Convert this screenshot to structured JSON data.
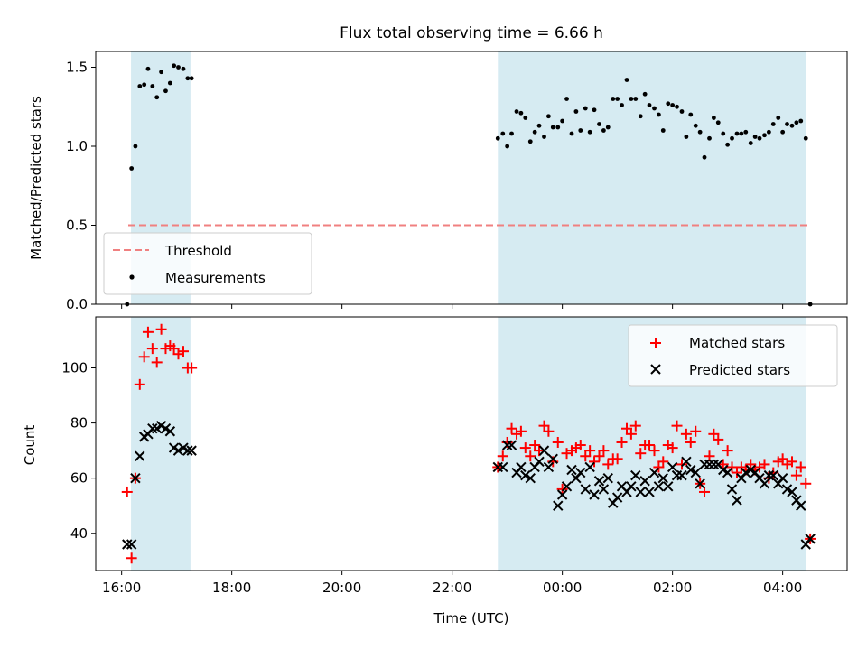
{
  "chart_data": [
    {
      "type": "scatter",
      "title": "Flux total observing time = 6.66 h",
      "ylabel": "Matched/Predicted stars",
      "xlabel": "",
      "ylim": [
        0,
        1.6
      ],
      "yticks": [
        0.0,
        0.5,
        1.0,
        1.5
      ],
      "ytick_labels": [
        "0.0",
        "0.5",
        "1.0",
        "1.5"
      ],
      "grid": false,
      "legend": "lower-left",
      "shaded_intervals": [
        [
          16.17,
          17.25
        ],
        [
          22.83,
          28.42
        ]
      ],
      "threshold": {
        "name": "Threshold",
        "value": 0.5,
        "x": [
          16.12,
          28.5
        ],
        "color": "#f08080"
      },
      "series": [
        {
          "name": "Measurements",
          "color": "#000000",
          "marker": "dot",
          "x": [
            16.1,
            16.18,
            16.25,
            16.33,
            16.41,
            16.48,
            16.56,
            16.64,
            16.72,
            16.8,
            16.88,
            16.95,
            17.03,
            17.12,
            17.2,
            17.27,
            22.83,
            22.92,
            23.0,
            23.08,
            23.17,
            23.25,
            23.33,
            23.42,
            23.5,
            23.58,
            23.67,
            23.75,
            23.83,
            23.92,
            24.0,
            24.08,
            24.17,
            24.25,
            24.33,
            24.42,
            24.5,
            24.58,
            24.67,
            24.75,
            24.83,
            24.92,
            25.0,
            25.08,
            25.17,
            25.25,
            25.33,
            25.42,
            25.5,
            25.58,
            25.67,
            25.75,
            25.83,
            25.92,
            26.0,
            26.08,
            26.17,
            26.25,
            26.33,
            26.42,
            26.5,
            26.58,
            26.67,
            26.75,
            26.83,
            26.92,
            27.0,
            27.08,
            27.17,
            27.25,
            27.33,
            27.42,
            27.5,
            27.58,
            27.67,
            27.75,
            27.83,
            27.92,
            28.0,
            28.08,
            28.17,
            28.25,
            28.33,
            28.42,
            28.5
          ],
          "y": [
            0.0,
            0.86,
            1.0,
            1.38,
            1.39,
            1.49,
            1.38,
            1.31,
            1.47,
            1.35,
            1.4,
            1.51,
            1.5,
            1.49,
            1.43,
            1.43,
            1.05,
            1.08,
            1.0,
            1.08,
            1.22,
            1.21,
            1.18,
            1.03,
            1.09,
            1.13,
            1.06,
            1.19,
            1.12,
            1.12,
            1.16,
            1.3,
            1.08,
            1.22,
            1.1,
            1.24,
            1.09,
            1.23,
            1.14,
            1.1,
            1.12,
            1.3,
            1.3,
            1.26,
            1.42,
            1.3,
            1.3,
            1.19,
            1.33,
            1.26,
            1.24,
            1.2,
            1.1,
            1.27,
            1.26,
            1.25,
            1.22,
            1.06,
            1.2,
            1.13,
            1.09,
            0.93,
            1.05,
            1.18,
            1.15,
            1.08,
            1.01,
            1.05,
            1.08,
            1.08,
            1.09,
            1.02,
            1.06,
            1.05,
            1.07,
            1.09,
            1.14,
            1.18,
            1.09,
            1.14,
            1.13,
            1.15,
            1.16,
            1.05,
            0.0
          ]
        }
      ]
    },
    {
      "type": "scatter",
      "title": "",
      "xlabel": "Time (UTC)",
      "ylabel": "Count",
      "xlim": [
        15.53,
        29.17
      ],
      "ylim": [
        26.5,
        118.5
      ],
      "xticks": [
        16,
        18,
        20,
        22,
        24,
        26,
        28
      ],
      "xtick_labels": [
        "16:00",
        "18:00",
        "20:00",
        "22:00",
        "00:00",
        "02:00",
        "04:00"
      ],
      "yticks": [
        40,
        60,
        80,
        100
      ],
      "ytick_labels": [
        "40",
        "60",
        "80",
        "100"
      ],
      "grid": false,
      "legend": "top-right",
      "shaded_intervals": [
        [
          16.17,
          17.25
        ],
        [
          22.83,
          28.42
        ]
      ],
      "series": [
        {
          "name": "Matched stars",
          "color": "#ff0000",
          "marker": "plus",
          "x": [
            16.1,
            16.18,
            16.25,
            16.33,
            16.41,
            16.48,
            16.56,
            16.64,
            16.72,
            16.8,
            16.88,
            16.95,
            17.03,
            17.12,
            17.2,
            17.27,
            22.83,
            22.92,
            23.0,
            23.08,
            23.17,
            23.25,
            23.33,
            23.42,
            23.5,
            23.58,
            23.67,
            23.75,
            23.83,
            23.92,
            24.0,
            24.08,
            24.17,
            24.25,
            24.33,
            24.42,
            24.5,
            24.58,
            24.67,
            24.75,
            24.83,
            24.92,
            25.0,
            25.08,
            25.17,
            25.25,
            25.33,
            25.42,
            25.5,
            25.58,
            25.67,
            25.75,
            25.83,
            25.92,
            26.0,
            26.08,
            26.17,
            26.25,
            26.33,
            26.42,
            26.5,
            26.58,
            26.67,
            26.75,
            26.83,
            26.92,
            27.0,
            27.08,
            27.17,
            27.25,
            27.33,
            27.42,
            27.5,
            27.58,
            27.67,
            27.75,
            27.83,
            27.92,
            28.0,
            28.08,
            28.17,
            28.25,
            28.33,
            28.42,
            28.5
          ],
          "y": [
            55,
            31,
            60,
            94,
            104,
            113,
            107,
            102,
            114,
            107,
            108,
            107,
            105,
            106,
            100,
            100,
            64,
            68,
            73,
            78,
            76,
            77,
            71,
            68,
            72,
            70,
            79,
            77,
            66,
            73,
            56,
            69,
            70,
            71,
            72,
            68,
            70,
            66,
            68,
            70,
            65,
            67,
            67,
            73,
            78,
            76,
            79,
            69,
            72,
            72,
            70,
            64,
            66,
            72,
            71,
            79,
            65,
            76,
            73,
            77,
            58,
            55,
            68,
            76,
            74,
            65,
            70,
            64,
            62,
            64,
            63,
            65,
            63,
            64,
            65,
            60,
            62,
            66,
            67,
            65,
            66,
            61,
            64,
            58,
            38
          ]
        },
        {
          "name": "Predicted stars",
          "color": "#000000",
          "marker": "x",
          "x": [
            16.1,
            16.18,
            16.25,
            16.33,
            16.41,
            16.48,
            16.56,
            16.64,
            16.72,
            16.8,
            16.88,
            16.95,
            17.03,
            17.12,
            17.2,
            17.27,
            22.83,
            22.92,
            23.0,
            23.08,
            23.17,
            23.25,
            23.33,
            23.42,
            23.5,
            23.58,
            23.67,
            23.75,
            23.83,
            23.92,
            24.0,
            24.08,
            24.17,
            24.25,
            24.33,
            24.42,
            24.5,
            24.58,
            24.67,
            24.75,
            24.83,
            24.92,
            25.0,
            25.08,
            25.17,
            25.25,
            25.33,
            25.42,
            25.5,
            25.58,
            25.67,
            25.75,
            25.83,
            25.92,
            26.0,
            26.08,
            26.17,
            26.25,
            26.33,
            26.42,
            26.5,
            26.58,
            26.67,
            26.75,
            26.83,
            26.92,
            27.0,
            27.08,
            27.17,
            27.25,
            27.33,
            27.42,
            27.5,
            27.58,
            27.67,
            27.75,
            27.83,
            27.92,
            28.0,
            28.08,
            28.17,
            28.25,
            28.33,
            28.42,
            28.5
          ],
          "y": [
            36,
            36,
            60,
            68,
            75,
            76,
            78,
            78,
            79,
            78,
            77,
            71,
            70,
            71,
            70,
            70,
            64,
            64,
            72,
            72,
            62,
            64,
            61,
            60,
            64,
            66,
            70,
            64,
            67,
            50,
            54,
            57,
            63,
            60,
            62,
            56,
            64,
            54,
            59,
            56,
            60,
            51,
            53,
            57,
            55,
            57,
            61,
            55,
            59,
            55,
            62,
            57,
            60,
            57,
            64,
            61,
            61,
            66,
            63,
            62,
            58,
            65,
            65,
            65,
            65,
            63,
            62,
            56,
            52,
            60,
            62,
            63,
            62,
            60,
            58,
            61,
            61,
            58,
            60,
            56,
            55,
            52,
            50,
            36,
            38
          ]
        }
      ]
    }
  ]
}
